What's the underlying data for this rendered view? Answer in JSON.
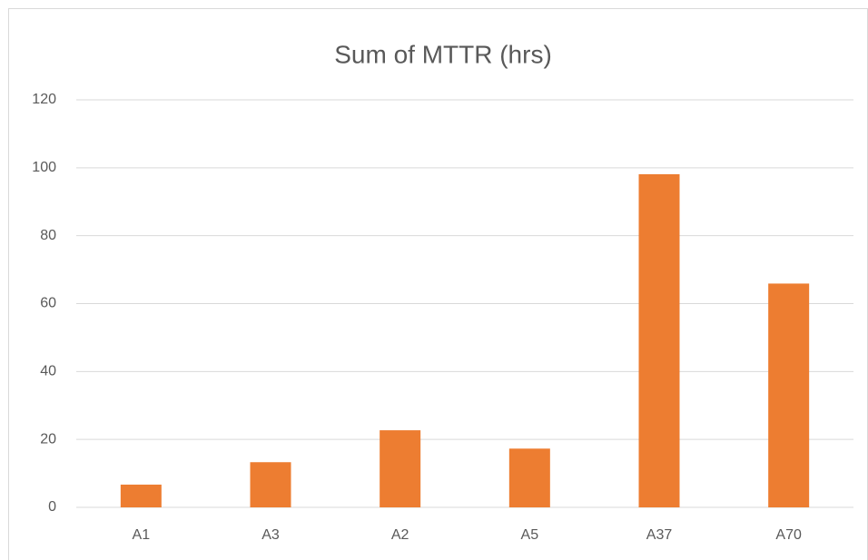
{
  "chart_data": {
    "type": "bar",
    "title": "Sum of MTTR (hrs)",
    "categories": [
      "A1",
      "A3",
      "A2",
      "A5",
      "A37",
      "A70"
    ],
    "values": [
      6.7,
      13.3,
      22.7,
      17.3,
      98.1,
      65.9
    ],
    "color": "#ed7d31",
    "ylim": [
      0,
      120
    ],
    "yticks": [
      0,
      20,
      40,
      60,
      80,
      100,
      120
    ],
    "grid": true
  }
}
